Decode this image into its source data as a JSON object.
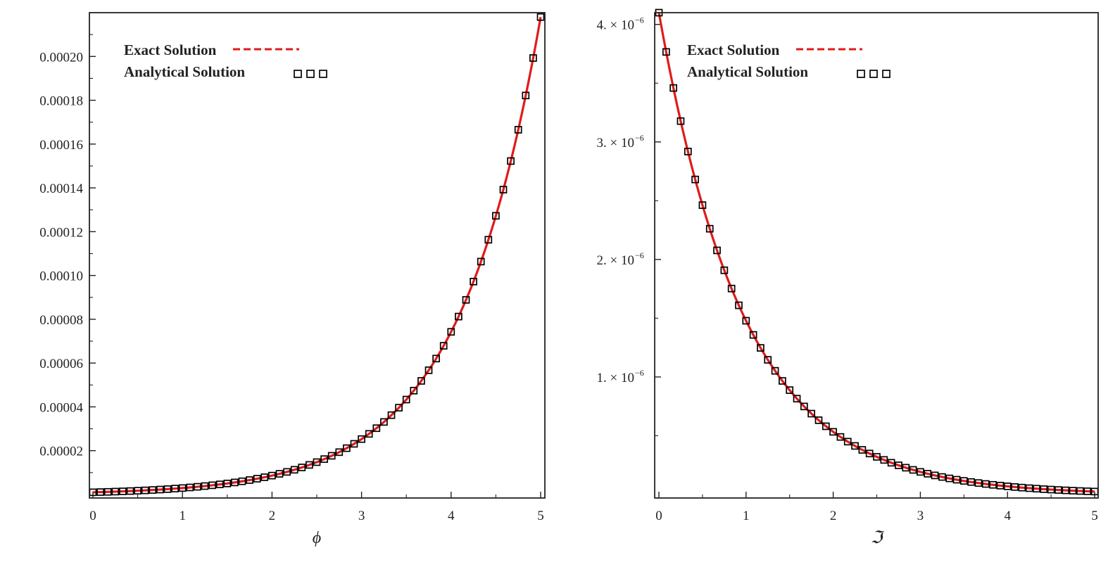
{
  "chart_data": [
    {
      "type": "line",
      "xlabel": "ϕ",
      "ylabel": "",
      "xlim": [
        0,
        5
      ],
      "ylim": [
        0.0,
        0.00022
      ],
      "x_ticks": [
        "0",
        "1",
        "2",
        "3",
        "4",
        "5"
      ],
      "y_ticks": [
        {
          "value": 2e-05,
          "label": "0.00002"
        },
        {
          "value": 4e-05,
          "label": "0.00004"
        },
        {
          "value": 6e-05,
          "label": "0.00006"
        },
        {
          "value": 8e-05,
          "label": "0.00008"
        },
        {
          "value": 0.0001,
          "label": "0.00010"
        },
        {
          "value": 0.00012,
          "label": "0.00012"
        },
        {
          "value": 0.00014,
          "label": "0.00014"
        },
        {
          "value": 0.00016,
          "label": "0.00016"
        },
        {
          "value": 0.00018,
          "label": "0.00018"
        },
        {
          "value": 0.0002,
          "label": "0.00020"
        }
      ],
      "legend_position": "top-left",
      "legend": [
        {
          "label": "Exact Solution",
          "style": "dashed-line",
          "color": "#e01b1b"
        },
        {
          "label": "Analytical Solution",
          "style": "square-markers",
          "color": "#000000"
        }
      ],
      "series": [
        {
          "name": "Exact Solution",
          "x": [
            0,
            0.5,
            1,
            1.5,
            2,
            2.5,
            3,
            3.5,
            4,
            4.5,
            5
          ],
          "y": [
            1e-06,
            2.5e-06,
            4.5e-06,
            7e-06,
            1.05e-05,
            1.65e-05,
            2.9e-05,
            4.9e-05,
            7.7e-05,
            0.00013,
            0.000218
          ]
        },
        {
          "name": "Analytical Solution",
          "x": [
            0,
            0.5,
            1,
            1.5,
            2,
            2.5,
            3,
            3.5,
            4,
            4.5,
            5
          ],
          "y": [
            1e-06,
            2.5e-06,
            4.5e-06,
            7e-06,
            1.05e-05,
            1.65e-05,
            2.9e-05,
            4.9e-05,
            7.7e-05,
            0.00013,
            0.000218
          ]
        }
      ],
      "curve": {
        "model": "exponential",
        "y0": 1e-06,
        "y_end": 0.000218,
        "x_start": 0,
        "x_end": 5
      },
      "marker_count": 61,
      "colors": {
        "line": "#e01b1b",
        "marker": "#000000"
      }
    },
    {
      "type": "line",
      "xlabel": "ℑ",
      "ylabel": "",
      "xlim": [
        0,
        5
      ],
      "ylim": [
        0.0,
        4.1e-06
      ],
      "x_ticks": [
        "0",
        "1",
        "2",
        "3",
        "4",
        "5"
      ],
      "y_ticks": [
        {
          "value": 1e-06,
          "label": "1. × 10",
          "exp": "−6"
        },
        {
          "value": 2e-06,
          "label": "2. × 10",
          "exp": "−6"
        },
        {
          "value": 3e-06,
          "label": "3. × 10",
          "exp": "−6"
        },
        {
          "value": 4e-06,
          "label": "4. × 10",
          "exp": "−6"
        }
      ],
      "legend_position": "top-right",
      "legend": [
        {
          "label": "Exact Solution",
          "style": "dashed-line",
          "color": "#e01b1b"
        },
        {
          "label": "Analytical Solution",
          "style": "square-markers",
          "color": "#000000"
        }
      ],
      "series": [
        {
          "name": "Exact Solution",
          "x": [
            0,
            0.5,
            1,
            1.5,
            2,
            2.5,
            3,
            3.5,
            4,
            4.5,
            5
          ],
          "y": [
            4.1e-06,
            2.45e-06,
            1.47e-06,
            8.8e-07,
            5.3e-07,
            3.2e-07,
            1.9e-07,
            1.15e-07,
            7e-08,
            4.2e-08,
            2.5e-08
          ]
        },
        {
          "name": "Analytical Solution",
          "x": [
            0,
            0.5,
            1,
            1.5,
            2,
            2.5,
            3,
            3.5,
            4,
            4.5,
            5
          ],
          "y": [
            4.1e-06,
            2.45e-06,
            1.47e-06,
            8.8e-07,
            5.3e-07,
            3.2e-07,
            1.9e-07,
            1.15e-07,
            7e-08,
            4.2e-08,
            2.5e-08
          ]
        }
      ],
      "curve": {
        "model": "exponential",
        "y0": 4.1e-06,
        "y_end": 2.5e-08,
        "x_start": 0,
        "x_end": 5
      },
      "marker_count": 61,
      "colors": {
        "line": "#e01b1b",
        "marker": "#000000"
      }
    }
  ]
}
